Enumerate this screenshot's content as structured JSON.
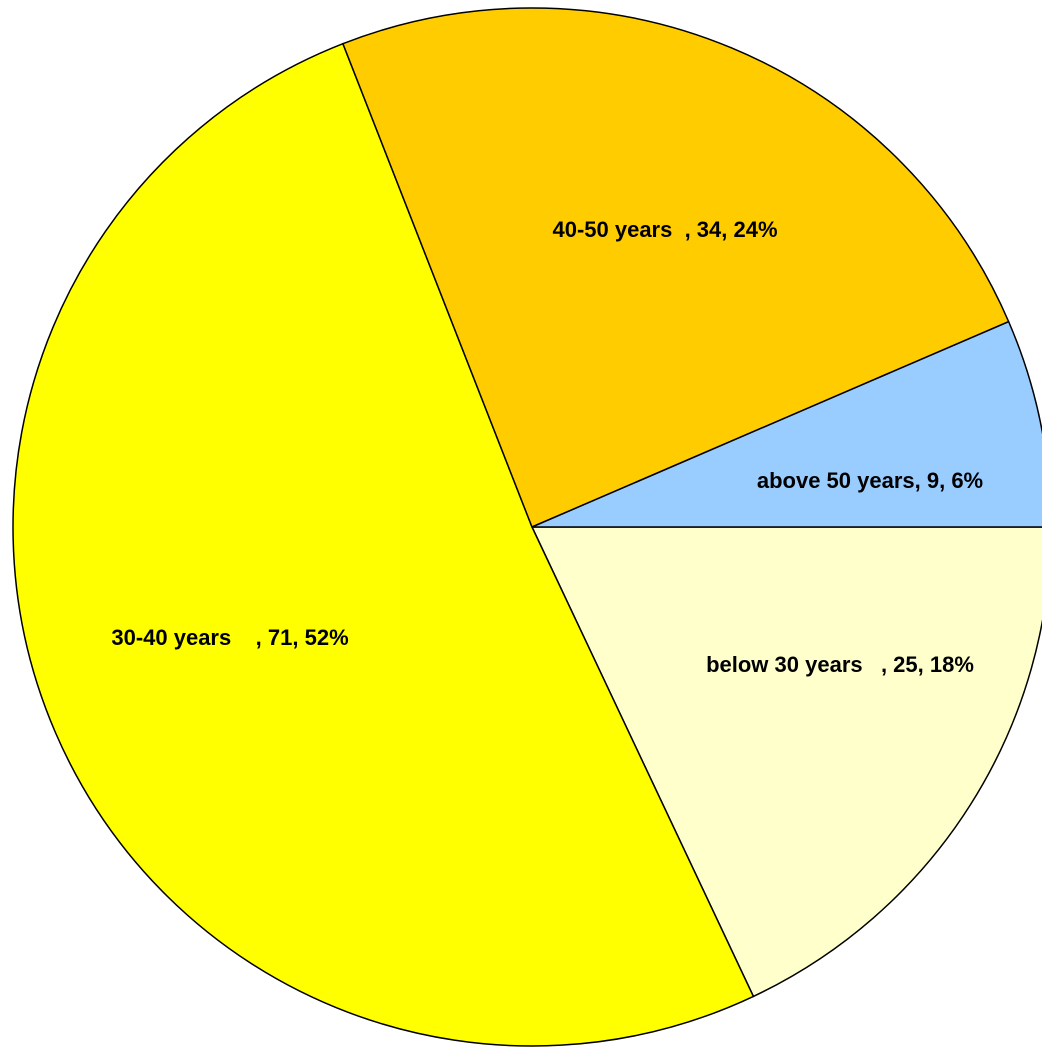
{
  "chart_data": {
    "type": "pie",
    "categories": [
      "below 30 years   ",
      "30-40 years    ",
      "40-50 years  ",
      "above 50 years"
    ],
    "values": [
      25,
      71,
      34,
      9
    ],
    "value_labels": [
      "below 30 years   , 25, 18%",
      "30-40 years    , 71, 52%",
      "40-50 years  , 34, 24%",
      "above 50 years, 9, 6%"
    ],
    "colors": [
      "#FFFFCC",
      "#FFFF00",
      "#FFCC00",
      "#99CCFF"
    ]
  }
}
